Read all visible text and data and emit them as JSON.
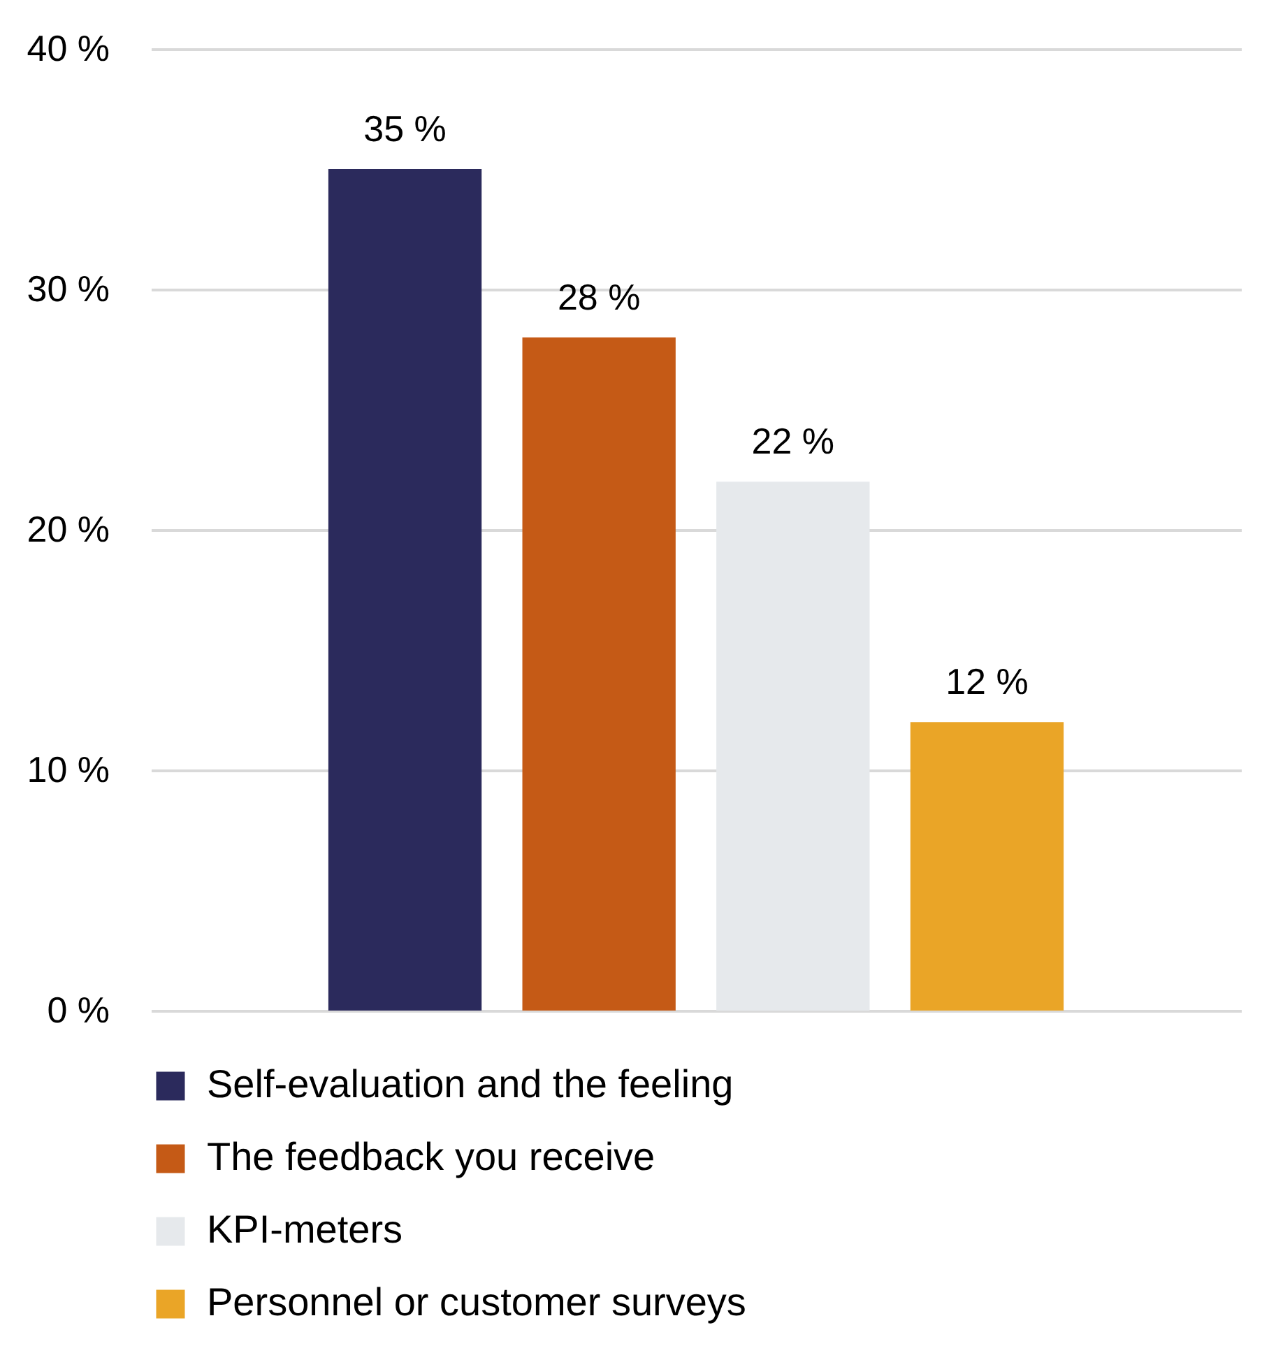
{
  "chart_data": {
    "type": "bar",
    "categories": [
      null
    ],
    "series": [
      {
        "name": "Self-evaluation and the feeling",
        "color": "#2b2a5c",
        "values": [
          35
        ],
        "value_labels": [
          "35 %"
        ]
      },
      {
        "name": "The feedback you receive",
        "color": "#c55a16",
        "values": [
          28
        ],
        "value_labels": [
          "28 %"
        ]
      },
      {
        "name": "KPI-meters",
        "color": "#e6e9ec",
        "values": [
          22
        ],
        "value_labels": [
          "22 %"
        ]
      },
      {
        "name": "Personnel or customer surveys",
        "color": "#eaa527",
        "values": [
          12
        ],
        "value_labels": [
          "12 %"
        ]
      }
    ],
    "ylim": [
      0,
      40
    ],
    "yticks": [
      {
        "value": 0,
        "label": "0 %"
      },
      {
        "value": 10,
        "label": "10 %"
      },
      {
        "value": 20,
        "label": "20 %"
      },
      {
        "value": 30,
        "label": "30 %"
      },
      {
        "value": 40,
        "label": "40 %"
      }
    ],
    "grid": "y",
    "legend": "bottom",
    "tick_labels": "y"
  }
}
